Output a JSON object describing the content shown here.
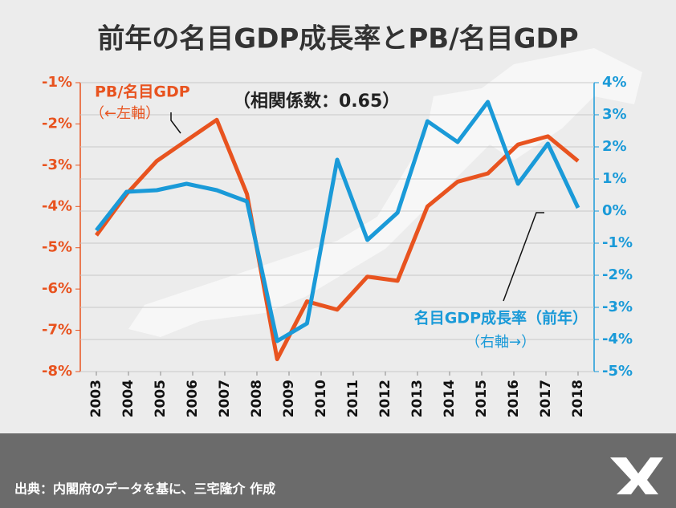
{
  "chart_data": {
    "type": "line",
    "title": "前年の名目GDP成長率とPB/名目GDP",
    "x": [
      2003,
      2003.94,
      2004.88,
      2005.81,
      2006.75,
      2007.69,
      2008.63,
      2009.56,
      2010.5,
      2011.44,
      2012.38,
      2013.31,
      2014.25,
      2015.19,
      2016.13,
      2017.06,
      2018
    ],
    "xlim": [
      2002.5,
      2018.5
    ],
    "xticks": [
      2003,
      2004,
      2005,
      2006,
      2007,
      2008,
      2009,
      2010,
      2011,
      2012,
      2013,
      2014,
      2015,
      2016,
      2017,
      2018
    ],
    "ylim": [
      -8,
      -1
    ],
    "yticks": [
      {
        "value": -8,
        "label": "-8%"
      },
      {
        "value": -7,
        "label": "-7%"
      },
      {
        "value": -6,
        "label": "-6%"
      },
      {
        "value": -5,
        "label": "-5%"
      },
      {
        "value": -4,
        "label": "-4%"
      },
      {
        "value": -3,
        "label": "-3%"
      },
      {
        "value": -2,
        "label": "-2%"
      },
      {
        "value": -1,
        "label": "-1%"
      }
    ],
    "y2lim": [
      -5,
      4
    ],
    "y2ticks": [
      {
        "value": -5,
        "label": "-5%"
      },
      {
        "value": -4,
        "label": "-4%"
      },
      {
        "value": -3,
        "label": "-3%"
      },
      {
        "value": -2,
        "label": "-2%"
      },
      {
        "value": -1,
        "label": "-1%"
      },
      {
        "value": 0,
        "label": "0%"
      },
      {
        "value": 1,
        "label": "1%"
      },
      {
        "value": 2,
        "label": "2%"
      },
      {
        "value": 3,
        "label": "3%"
      },
      {
        "value": 4,
        "label": "4%"
      }
    ],
    "grid": true,
    "series": [
      {
        "name": "PB/名目GDP",
        "color": "#e8531f",
        "axis": "y",
        "values": [
          -4.7,
          -3.7,
          -2.9,
          -2.4,
          -1.9,
          -3.7,
          -7.7,
          -6.3,
          -6.5,
          -5.7,
          -5.8,
          -4.0,
          -3.4,
          -3.2,
          -2.5,
          -2.3,
          -2.9
        ]
      },
      {
        "name": "名目GDP成長率（前年）",
        "color": "#1a9ad8",
        "axis": "y2",
        "values": [
          -0.6,
          0.6,
          0.65,
          0.85,
          0.65,
          0.3,
          -4.05,
          -3.5,
          1.6,
          -0.9,
          -0.05,
          2.8,
          2.15,
          3.4,
          0.85,
          2.1,
          0.1
        ]
      }
    ],
    "annotations": [
      "（←左軸）",
      "（相関係数：0.65）",
      "（右軸→）"
    ],
    "source": "出典：内閣府のデータを基に、三宅隆介 作成"
  }
}
